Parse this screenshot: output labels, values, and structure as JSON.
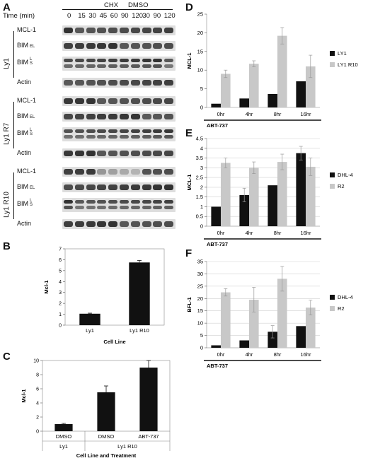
{
  "panels": {
    "A": "A",
    "B": "B",
    "C": "C",
    "D": "D",
    "E": "E",
    "F": "F"
  },
  "blot": {
    "time_label": "Time (min)",
    "group_chx": "CHX",
    "group_dmso": "DMSO",
    "times": [
      "0",
      "15",
      "30",
      "45",
      "60",
      "90",
      "120",
      "30",
      "90",
      "120"
    ],
    "sections": [
      {
        "name": "Ly1",
        "rows": [
          "MCL-1",
          "BIM",
          "BIM",
          "Actin"
        ],
        "subs": [
          "",
          "EL",
          "L\nS",
          ""
        ]
      },
      {
        "name": "Ly1 R7",
        "rows": [
          "MCL-1",
          "BIM",
          "BIM",
          "Actin"
        ],
        "subs": [
          "",
          "EL",
          "L\nS",
          ""
        ]
      },
      {
        "name": "Ly1 R10",
        "rows": [
          "MCL-1",
          "BIM",
          "BIM",
          "Actin"
        ],
        "subs": [
          "",
          "EL",
          "L\nS",
          ""
        ]
      }
    ]
  },
  "chart_data": [
    {
      "panel": "B",
      "type": "bar",
      "categories": [
        "Ly1",
        "Ly1 R10"
      ],
      "values": [
        1.05,
        5.75
      ],
      "errors": [
        0.05,
        0.18
      ],
      "xlabel": "Cell Line",
      "ylabel": "Mcl-1",
      "ylim": [
        0,
        7
      ],
      "yticks": [
        0,
        1,
        2,
        3,
        4,
        5,
        6,
        7
      ],
      "grid": false,
      "colors": [
        "#111111"
      ]
    },
    {
      "panel": "C",
      "type": "bar",
      "categories": [
        "DMSO",
        "DMSO",
        "ABT-737"
      ],
      "groups": [
        "Ly1",
        "Ly1 R10"
      ],
      "values": [
        1.0,
        5.5,
        9.0
      ],
      "errors": [
        0.1,
        0.9,
        1.0
      ],
      "xlabel": "Cell Line and Treatment",
      "ylabel": "Mcl-1",
      "ylim": [
        0,
        10
      ],
      "yticks": [
        0,
        2,
        4,
        6,
        8,
        10
      ],
      "grid": false,
      "colors": [
        "#111111"
      ]
    },
    {
      "panel": "D",
      "type": "bar",
      "categories": [
        "0hr",
        "4hr",
        "8hr",
        "16hr"
      ],
      "series": [
        {
          "name": "LY1",
          "values": [
            1.0,
            2.4,
            3.6,
            7.0
          ],
          "errors": [
            0,
            0,
            0,
            0
          ],
          "color": "#111111"
        },
        {
          "name": "LY1 R10",
          "values": [
            9.0,
            11.7,
            19.2,
            11.0
          ],
          "errors": [
            1.0,
            0.8,
            2.2,
            3.0
          ],
          "color": "#c8c8c8"
        }
      ],
      "xlabel": "ABT-737",
      "ylabel": "MCL-1",
      "ylim": [
        0,
        25
      ],
      "yticks": [
        0,
        5,
        10,
        15,
        20,
        25
      ],
      "grid": false,
      "legend": "right"
    },
    {
      "panel": "E",
      "type": "bar",
      "categories": [
        "0hr",
        "4hr",
        "8hr",
        "16hr"
      ],
      "series": [
        {
          "name": "DHL-4",
          "values": [
            1.0,
            1.6,
            2.1,
            3.75
          ],
          "errors": [
            0,
            0.35,
            0,
            0.35
          ],
          "color": "#111111"
        },
        {
          "name": "R2",
          "values": [
            3.25,
            3.0,
            3.3,
            3.05
          ],
          "errors": [
            0.25,
            0.3,
            0.4,
            0.45
          ],
          "color": "#c8c8c8"
        }
      ],
      "xlabel": "ABT-737",
      "ylabel": "MCL-1",
      "ylim": [
        0,
        4.5
      ],
      "yticks": [
        0,
        0.5,
        1,
        1.5,
        2,
        2.5,
        3,
        3.5,
        4,
        4.5
      ],
      "grid": true,
      "legend": "right"
    },
    {
      "panel": "F",
      "type": "bar",
      "categories": [
        "0hr",
        "4hr",
        "8hr",
        "16hr"
      ],
      "series": [
        {
          "name": "DHL-4",
          "values": [
            1.0,
            3.0,
            6.5,
            8.8
          ],
          "errors": [
            0,
            0,
            2.5,
            0
          ],
          "color": "#111111"
        },
        {
          "name": "R2",
          "values": [
            22.5,
            19.5,
            28.0,
            16.3
          ],
          "errors": [
            1.5,
            5.0,
            5.0,
            3.0
          ],
          "color": "#c8c8c8"
        }
      ],
      "xlabel": "ABT-737",
      "ylabel": "BFL-1",
      "ylim": [
        0,
        35
      ],
      "yticks": [
        0,
        5,
        10,
        15,
        20,
        25,
        30,
        35
      ],
      "grid": true,
      "legend": "right"
    }
  ]
}
